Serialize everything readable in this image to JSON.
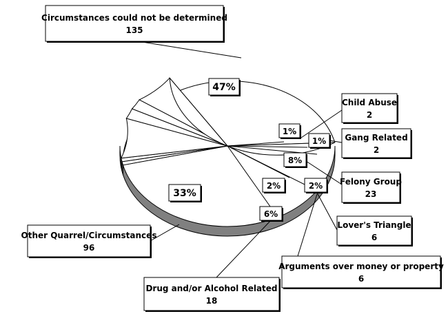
{
  "chart_data": {
    "type": "pie",
    "title": "",
    "slices": [
      {
        "label": "Circumstances could not be determined",
        "value": 135,
        "percent": "47%"
      },
      {
        "label": "Child Abuse",
        "value": 2,
        "percent": "1%"
      },
      {
        "label": "Gang Related",
        "value": 2,
        "percent": "1%"
      },
      {
        "label": "Felony Group",
        "value": 23,
        "percent": "8%"
      },
      {
        "label": "Lover's Triangle",
        "value": 6,
        "percent": "2%"
      },
      {
        "label": "Arguments over money or property",
        "value": 6,
        "percent": "2%"
      },
      {
        "label": "Drug  and/or Alcohol Related",
        "value": 18,
        "percent": "6%"
      },
      {
        "label": "Other Quarrel/Circumstances",
        "value": 96,
        "percent": "33%"
      }
    ],
    "style": "3d-pie",
    "colors": {
      "slice_fill": "#ffffff",
      "edge_fill": "#808080",
      "stroke": "#000000"
    }
  }
}
